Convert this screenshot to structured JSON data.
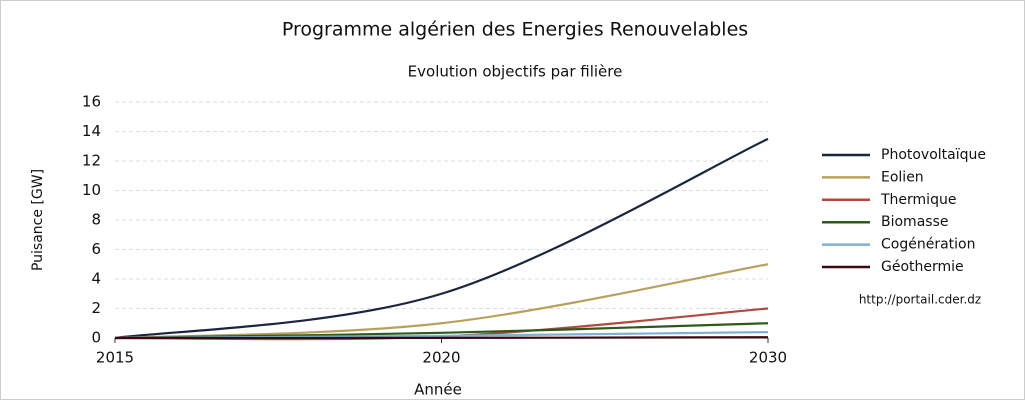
{
  "chart_data": {
    "type": "line",
    "title": "Programme algérien des Energies Renouvelables",
    "subtitle": "Evolution objectifs par filière",
    "xlabel": "Année",
    "ylabel": "Puisance [GW]",
    "source": "http://portail.cder.dz",
    "categories": [
      "2015",
      "2020",
      "2030"
    ],
    "ylim": [
      0,
      16
    ],
    "yticks": [
      0,
      2,
      4,
      6,
      8,
      10,
      12,
      14,
      16
    ],
    "grid": true,
    "legend": "right",
    "series": [
      {
        "name": "Photovoltaïque",
        "color": "#1a2540",
        "values": [
          0,
          3,
          13.5
        ]
      },
      {
        "name": "Eolien",
        "color": "#b8a15a",
        "values": [
          0,
          1,
          5
        ]
      },
      {
        "name": "Thermique",
        "color": "#b04a3c",
        "values": [
          0,
          0.1,
          2
        ]
      },
      {
        "name": "Biomasse",
        "color": "#2d5a1a",
        "values": [
          0,
          0.35,
          1
        ]
      },
      {
        "name": "Cogénération",
        "color": "#7fb0d8",
        "values": [
          0,
          0.15,
          0.4
        ]
      },
      {
        "name": "Géothermie",
        "color": "#3a0a14",
        "values": [
          0,
          0.01,
          0.05
        ]
      }
    ]
  }
}
